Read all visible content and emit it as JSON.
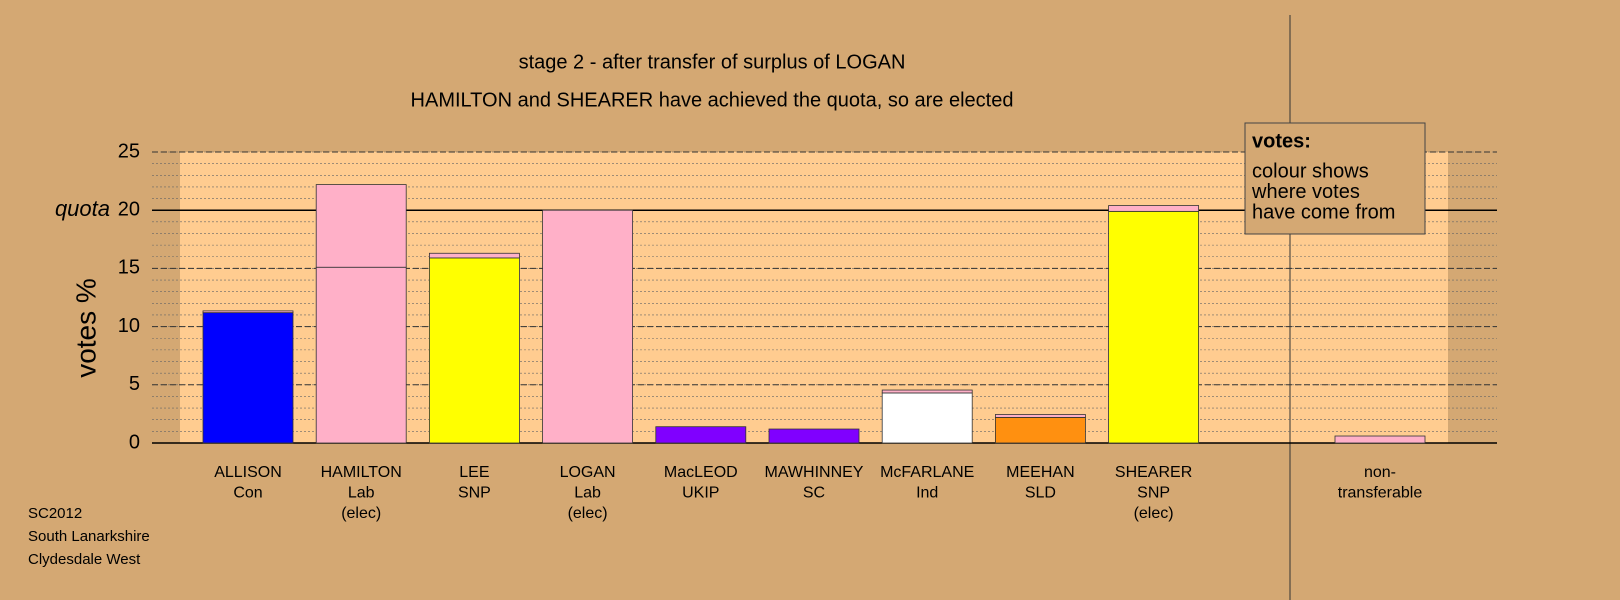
{
  "chart_data": {
    "type": "bar",
    "title": "stage 2 - after transfer of surplus of LOGAN",
    "subtitle": "HAMILTON and SHEARER have achieved the quota, so are elected",
    "y_label": "votes %",
    "categories": [
      [
        "ALLISON",
        "Con"
      ],
      [
        "HAMILTON",
        "Lab",
        "(elec)"
      ],
      [
        "LEE",
        "SNP"
      ],
      [
        "LOGAN",
        "Lab",
        "(elec)"
      ],
      [
        "MacLEOD",
        "UKIP"
      ],
      [
        "MAWHINNEY",
        "SC"
      ],
      [
        "McFARLANE",
        "Ind"
      ],
      [
        "MEEHAN",
        "SLD"
      ],
      [
        "SHEARER",
        "SNP",
        "(elec)"
      ],
      null,
      [
        "non-",
        "transferable"
      ]
    ],
    "series": [
      {
        "colors": [
          "#0000ff",
          "#ffb0c8",
          "#ffff00",
          "#ffb0c8",
          "#8000ff",
          "#8000ff",
          "#ffffff",
          "#ff9010",
          "#ffff00",
          null,
          null
        ],
        "values": [
          11.2,
          15.1,
          15.9,
          20.0,
          1.4,
          1.2,
          4.3,
          2.2,
          19.9,
          null,
          null
        ]
      },
      {
        "color": "#ffb0c8",
        "values": [
          0.15,
          7.1,
          0.4,
          null,
          null,
          null,
          0.25,
          0.25,
          0.5,
          null,
          0.6
        ]
      }
    ],
    "ylim": [
      0,
      25
    ],
    "yticks": [
      0,
      5,
      10,
      15,
      20,
      25
    ],
    "minor_grid_step": 1,
    "grid": true,
    "quota": {
      "label": "quota",
      "value": 20
    },
    "legend": {
      "title": "votes:",
      "lines": [
        "colour shows",
        "where votes",
        "have come from"
      ]
    },
    "notes": [
      "SC2012",
      "South Lanarkshire",
      "Clydesdale West"
    ]
  }
}
